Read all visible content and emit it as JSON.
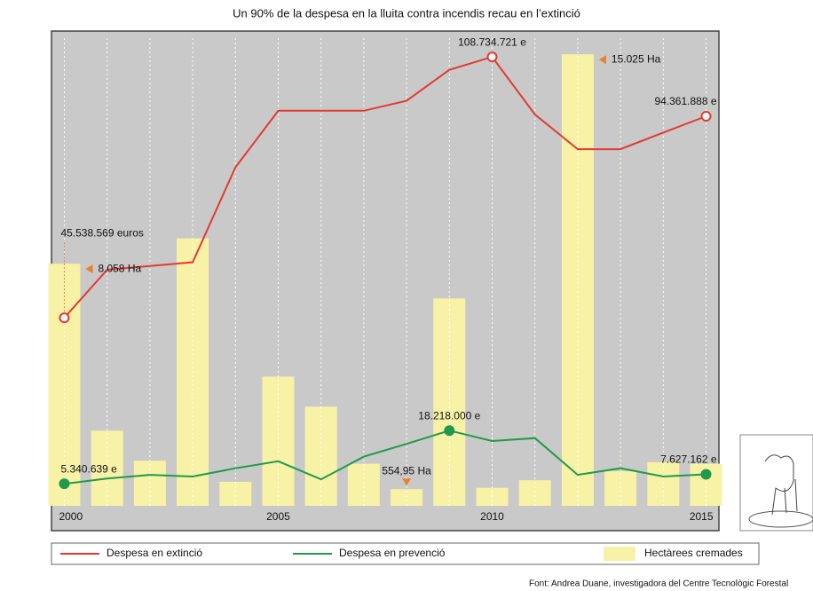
{
  "chart_data": {
    "type": "combo",
    "title": "Un 90% de la despesa en la lluita contra incendis recau en l’extinció",
    "x": [
      2000,
      2001,
      2002,
      2003,
      2004,
      2005,
      2006,
      2007,
      2008,
      2009,
      2010,
      2011,
      2012,
      2013,
      2014,
      2015
    ],
    "xlim": [
      1999.7,
      2015.3
    ],
    "xticks": [
      2000,
      2005,
      2010,
      2015
    ],
    "ylim": [
      0,
      115000000
    ],
    "y2lim": [
      0,
      15800
    ],
    "grid": true,
    "legend": "bottom",
    "series": [
      {
        "name": "Despesa en extinció",
        "type": "line",
        "color": "#e23a32",
        "values": [
          45538569,
          57200000,
          58100000,
          59000000,
          82000000,
          95700000,
          95700000,
          95700000,
          98100000,
          105600000,
          108734721,
          94800000,
          86400000,
          86400000,
          90400000,
          94361888
        ],
        "value_labels": [
          "45.538.569 euros",
          null,
          null,
          null,
          null,
          null,
          null,
          null,
          null,
          null,
          "108.734.721 e",
          null,
          null,
          null,
          null,
          "94.361.888 e"
        ]
      },
      {
        "name": "Despesa en prevenció",
        "type": "line",
        "color": "#1f9a4c",
        "values": [
          5340639,
          6600000,
          7500000,
          7100000,
          9100000,
          10800000,
          6400000,
          11900000,
          15000000,
          18218000,
          15700000,
          16400000,
          7500000,
          9100000,
          7100000,
          7627162
        ],
        "value_labels": [
          "5.340.639 e",
          null,
          null,
          null,
          null,
          null,
          null,
          null,
          null,
          "18.218.000 e",
          null,
          null,
          null,
          null,
          null,
          "7.627.162 e"
        ]
      },
      {
        "name": "Hectàrees cremades",
        "type": "bar",
        "axis": "y2",
        "color": "#f8f2a6",
        "values": [
          8058,
          2500,
          1500,
          8900,
          800,
          4300,
          3300,
          1400,
          554.95,
          6900,
          600,
          850,
          15025,
          1150,
          1450,
          1400
        ],
        "value_labels": [
          "8.058 Ha",
          null,
          null,
          null,
          null,
          null,
          null,
          null,
          "554,95 Ha",
          null,
          null,
          null,
          "15.025 Ha",
          null,
          null,
          null
        ]
      }
    ],
    "source": "Font: Andrea Duane, investigadora del Centre Tecnològic Forestal"
  }
}
